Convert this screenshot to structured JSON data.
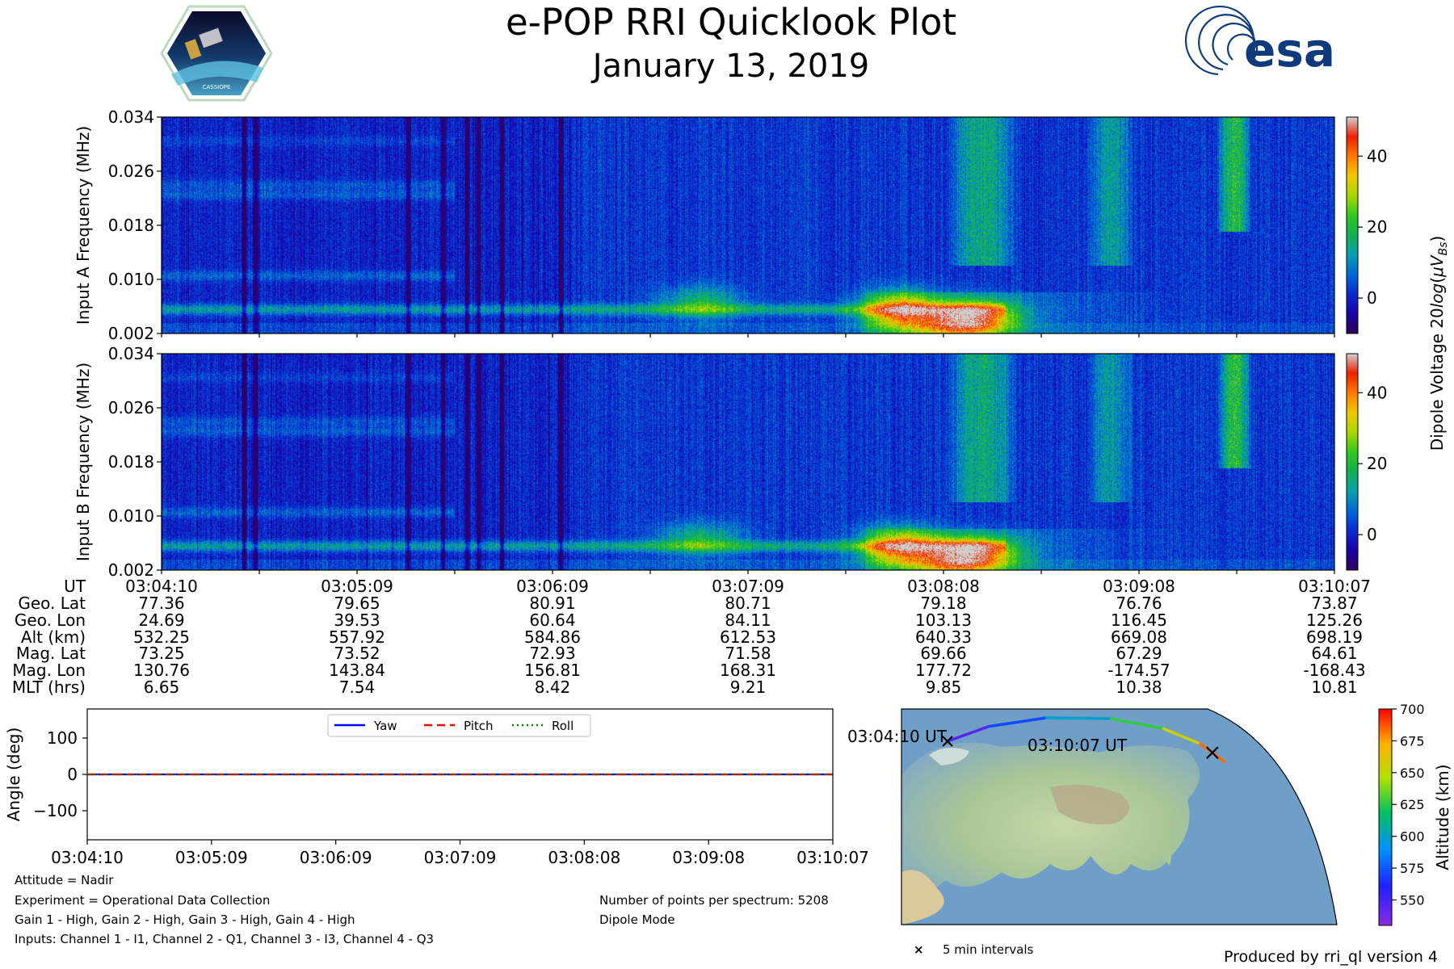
{
  "header": {
    "title": "e-POP RRI Quicklook Plot",
    "date": "January 13, 2019",
    "mission_logo_text": "CASSIOPE",
    "agency_logo_text": "esa"
  },
  "colors": {
    "cmap": [
      "#30005a",
      "#1a00a8",
      "#0a2ad0",
      "#0068d8",
      "#0a9fb0",
      "#10b050",
      "#30c820",
      "#a8d800",
      "#f0c800",
      "#ff7a00",
      "#f01e00",
      "#d0d0d0"
    ],
    "yaw": "#0000ff",
    "pitch": "#ff0000",
    "roll": "#008000",
    "track_marker": "#000000"
  },
  "chart_data": [
    {
      "id": "spectrogram_a",
      "type": "heatmap",
      "title": "",
      "ylabel": "Input A Frequency (MHz)",
      "ylim": [
        0.002,
        0.034
      ],
      "yticks": [
        "0.002",
        "0.010",
        "0.018",
        "0.026",
        "0.034"
      ],
      "x_time_range": [
        "03:04:10",
        "03:10:07"
      ],
      "features": {
        "background_db": 2,
        "bands": [
          {
            "freq_mhz": 0.0055,
            "db": 16,
            "t_range": [
              0.0,
              0.72
            ]
          },
          {
            "freq_mhz": 0.0105,
            "db": 8,
            "t_range": [
              0.0,
              0.25
            ]
          },
          {
            "freq_mhz": 0.0225,
            "db": 7,
            "t_range": [
              0.0,
              0.25
            ]
          },
          {
            "freq_mhz": 0.024,
            "db": 6,
            "t_range": [
              0.0,
              0.25
            ]
          },
          {
            "freq_mhz": 0.0305,
            "db": 4,
            "t_range": [
              0.0,
              0.25
            ]
          }
        ],
        "hotspots": [
          {
            "t": 0.46,
            "freq_mhz": 0.0065,
            "db": 18
          },
          {
            "t": 0.63,
            "freq_mhz": 0.0065,
            "db": 17
          },
          {
            "t": 0.63,
            "freq_mhz": 0.0045,
            "db": 28
          },
          {
            "t": 0.68,
            "freq_mhz": 0.0035,
            "db": 32
          },
          {
            "t": 0.7,
            "freq_mhz": 0.0045,
            "db": 26
          }
        ],
        "streaks": [
          {
            "t_range": [
              0.67,
              0.73
            ],
            "freq_range_mhz": [
              0.012,
              0.034
            ],
            "db": 18
          },
          {
            "t_range": [
              0.79,
              0.83
            ],
            "freq_range_mhz": [
              0.012,
              0.034
            ],
            "db": 14
          },
          {
            "t_range": [
              0.9,
              0.93
            ],
            "freq_range_mhz": [
              0.017,
              0.034
            ],
            "db": 24
          }
        ],
        "dark_bursts": [
          0.07,
          0.08,
          0.21,
          0.24,
          0.26,
          0.27,
          0.29,
          0.34
        ]
      }
    },
    {
      "id": "spectrogram_b",
      "type": "heatmap",
      "title": "",
      "ylabel": "Input B Frequency (MHz)",
      "ylim": [
        0.002,
        0.034
      ],
      "yticks": [
        "0.002",
        "0.010",
        "0.018",
        "0.026",
        "0.034"
      ],
      "x_time_range": [
        "03:04:10",
        "03:10:07"
      ],
      "features": "same pattern as Input A"
    },
    {
      "id": "colorbar",
      "type": "heatmap",
      "title": "",
      "label_parts": [
        "Dipole Voltage 20",
        "log",
        "(",
        "μV",
        "B",
        "s",
        ")"
      ],
      "range_db": [
        -10,
        51
      ],
      "ticks": [
        {
          "v": 0,
          "label": "0"
        },
        {
          "v": 20,
          "label": "20"
        },
        {
          "v": 40,
          "label": "40"
        }
      ]
    },
    {
      "id": "ephemeris_table",
      "type": "table",
      "row_labels": [
        "UT",
        "Geo. Lat",
        "Geo. Lon",
        "Alt (km)",
        "Mag. Lat",
        "Mag. Lon",
        "MLT (hrs)"
      ],
      "columns": [
        [
          "03:04:10",
          "77.36",
          "24.69",
          "532.25",
          "73.25",
          "130.76",
          "6.65"
        ],
        [
          "03:05:09",
          "79.65",
          "39.53",
          "557.92",
          "73.52",
          "143.84",
          "7.54"
        ],
        [
          "03:06:09",
          "80.91",
          "60.64",
          "584.86",
          "72.93",
          "156.81",
          "8.42"
        ],
        [
          "03:07:09",
          "80.71",
          "84.11",
          "612.53",
          "71.58",
          "168.31",
          "9.21"
        ],
        [
          "03:08:08",
          "79.18",
          "103.13",
          "640.33",
          "69.66",
          "177.72",
          "9.85"
        ],
        [
          "03:09:08",
          "76.76",
          "116.45",
          "669.08",
          "67.29",
          "-174.57",
          "10.38"
        ],
        [
          "03:10:07",
          "73.87",
          "125.26",
          "698.19",
          "64.61",
          "-168.43",
          "10.81"
        ]
      ]
    },
    {
      "id": "attitude",
      "type": "line",
      "title": "",
      "xlabel": "",
      "ylabel": "Angle (deg)",
      "ylim": [
        -180,
        180
      ],
      "yticks": [
        {
          "v": 100,
          "label": "100"
        },
        {
          "v": 0,
          "label": "0"
        },
        {
          "v": -100,
          "label": "−100"
        }
      ],
      "categories": [
        "03:04:10",
        "03:05:09",
        "03:06:09",
        "03:07:09",
        "03:08:08",
        "03:09:08",
        "03:10:07"
      ],
      "series": [
        {
          "name": "Yaw",
          "values": [
            0,
            0,
            0,
            0,
            0,
            0,
            0
          ],
          "style": "solid"
        },
        {
          "name": "Pitch",
          "values": [
            0,
            0,
            0,
            0,
            0,
            0,
            0
          ],
          "style": "dashed"
        },
        {
          "name": "Roll",
          "values": [
            0,
            0,
            0,
            0,
            0,
            0,
            0
          ],
          "style": "dotted"
        }
      ],
      "legend": "top-center"
    },
    {
      "id": "orbit_map",
      "type": "scatter",
      "title": "",
      "track_lon": [
        24.69,
        39.53,
        60.64,
        84.11,
        103.13,
        116.45,
        125.26
      ],
      "track_lat": [
        77.36,
        79.65,
        80.91,
        80.71,
        79.18,
        76.76,
        73.87
      ],
      "track_alt_km": [
        532.25,
        557.92,
        584.86,
        612.53,
        640.33,
        669.08,
        698.19
      ],
      "start_label": "03:04:10 UT",
      "end_label": "03:10:07 UT",
      "marker_note": "5 min intervals",
      "marker_symbol": "×"
    },
    {
      "id": "altitude_colorbar",
      "type": "heatmap",
      "title": "",
      "label": "Altitude (km)",
      "range_km": [
        530,
        700
      ],
      "ticks": [
        "550",
        "575",
        "600",
        "625",
        "650",
        "675",
        "700"
      ]
    }
  ],
  "footer": {
    "attitude": "Attitude = Nadir",
    "experiment": "Experiment = Operational Data Collection",
    "gains": "Gain 1 - High, Gain 2 - High, Gain 3 - High, Gain 4 - High",
    "inputs": "Inputs: Channel 1 - I1, Channel 2 - Q1, Channel 3 - I3, Channel 4 - Q3",
    "points": "Number of points per spectrum: 5208",
    "mode": "Dipole Mode",
    "produced_by": "Produced by rri_ql version 4"
  }
}
